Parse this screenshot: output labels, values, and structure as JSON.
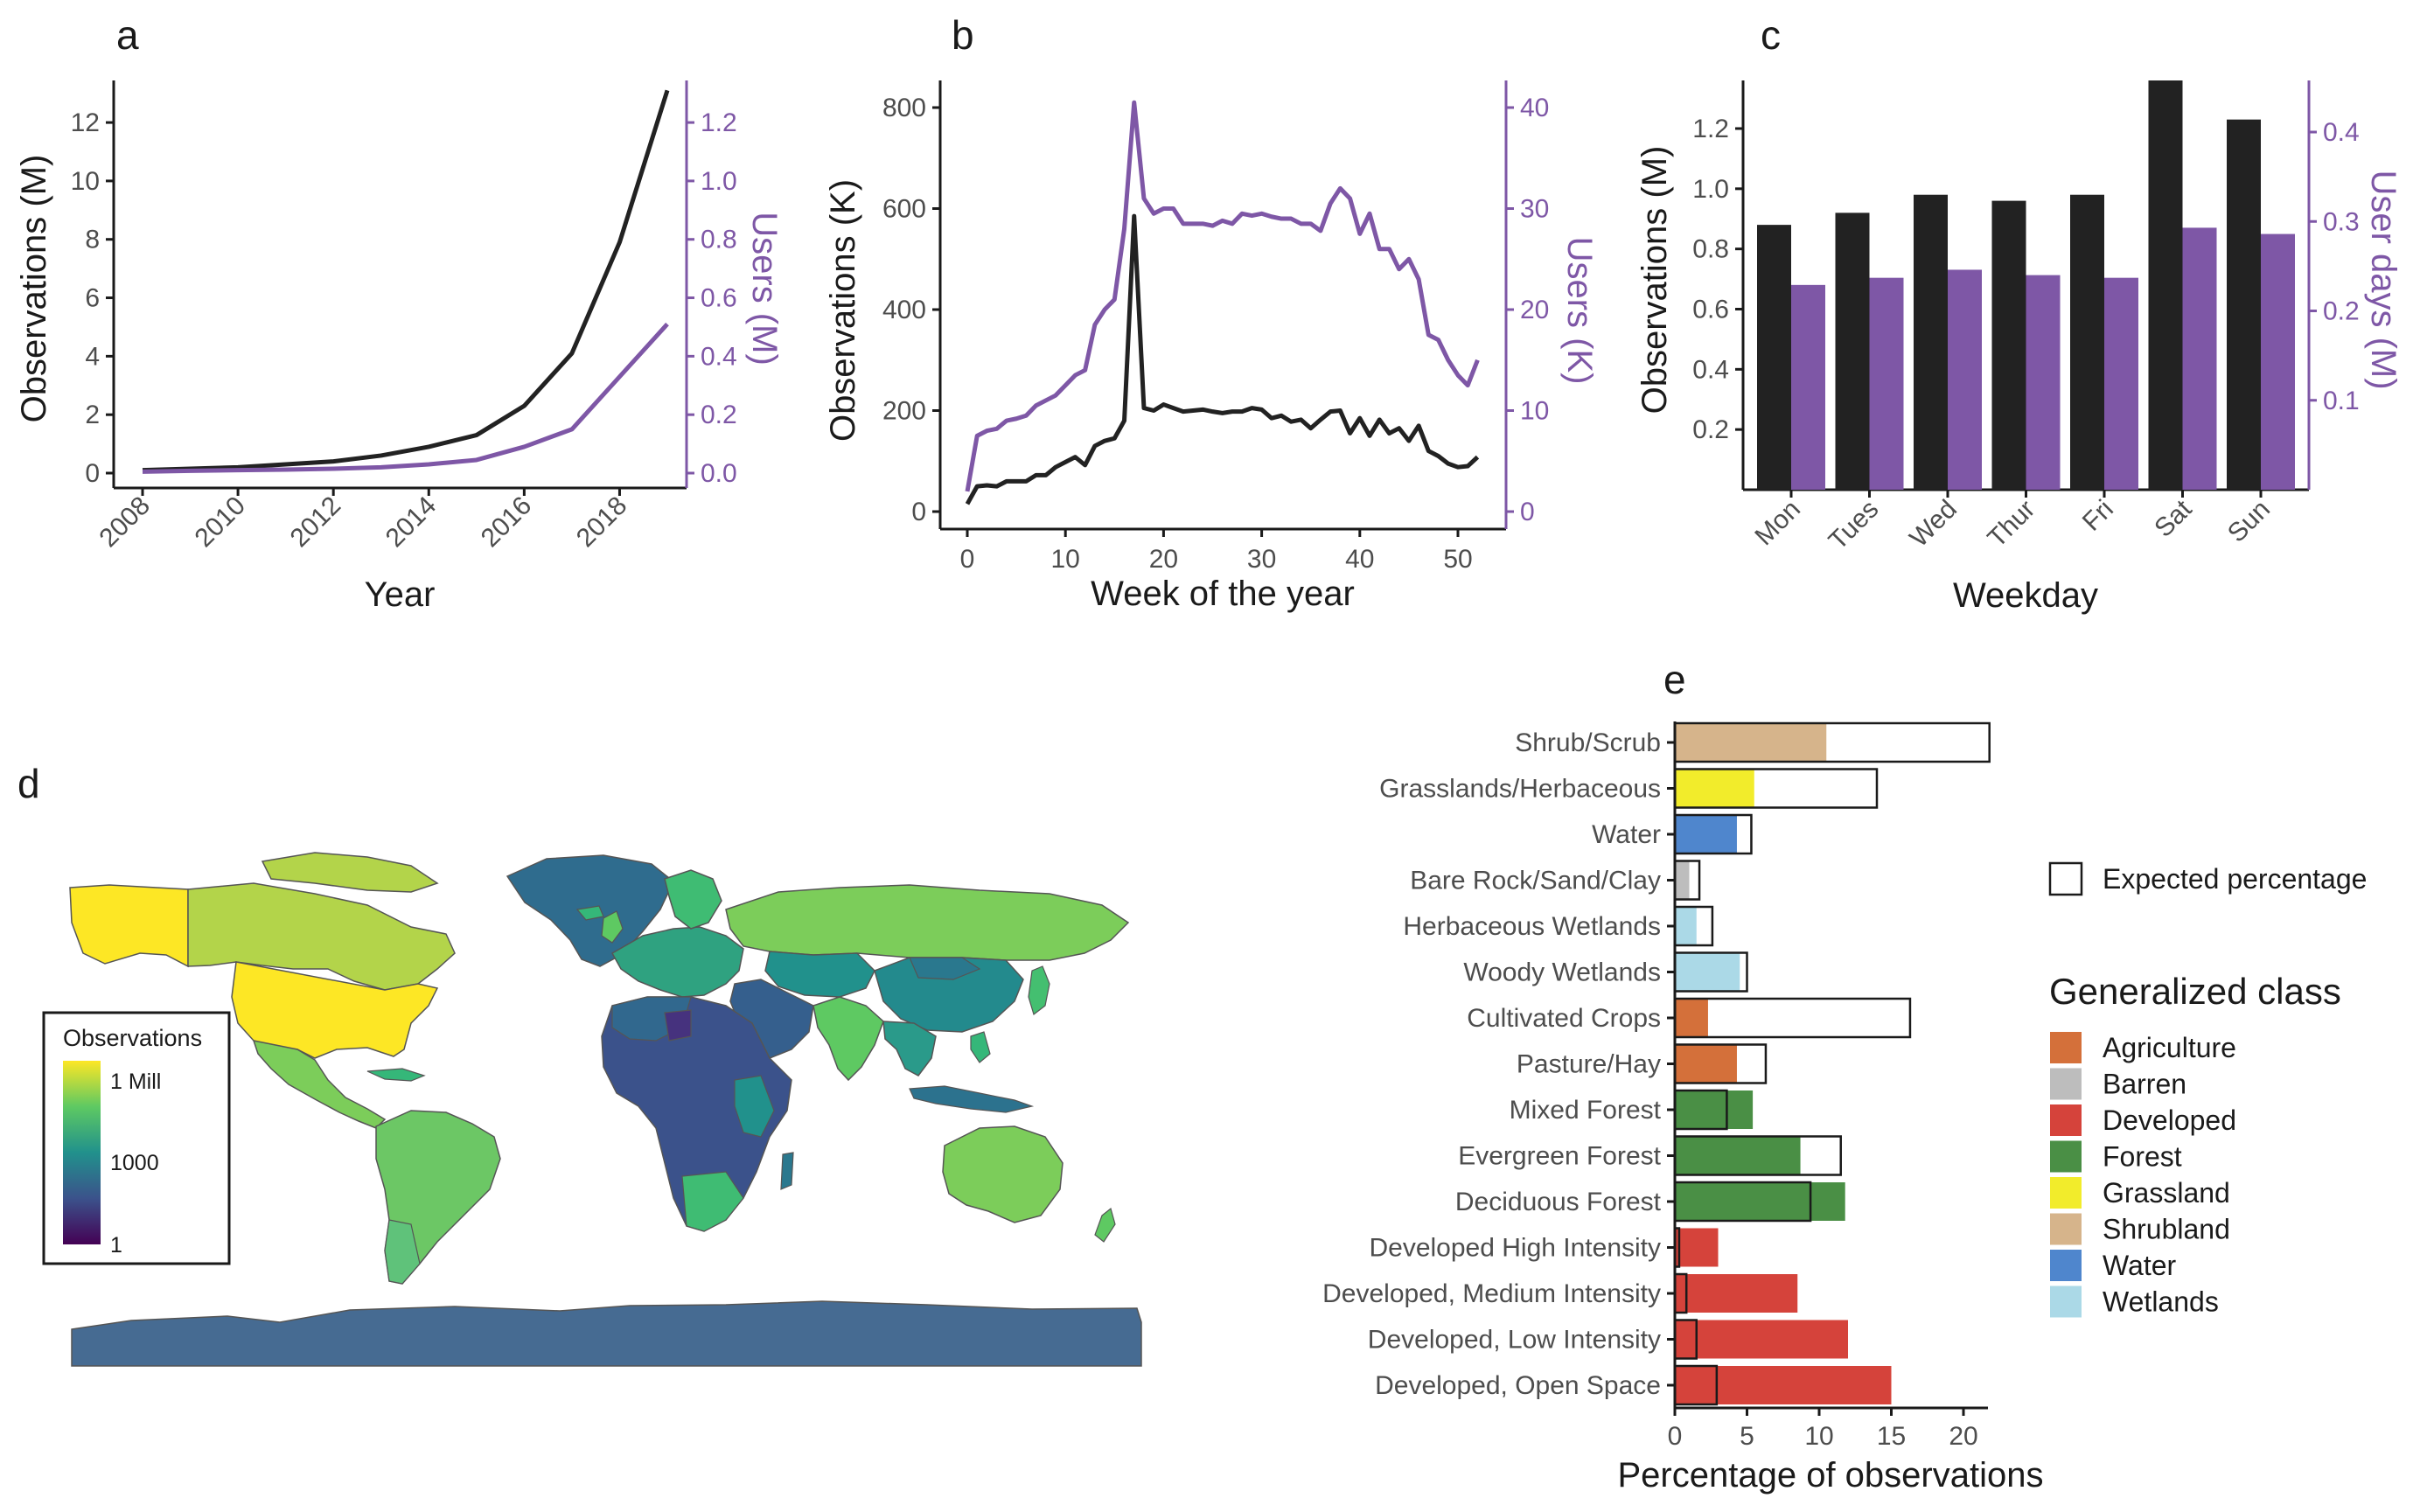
{
  "colors": {
    "black": "#222222",
    "purple": "#7e57a6",
    "land": "#3d6f8e",
    "ocean": "#ffffff"
  },
  "panels": {
    "a": "a",
    "b": "b",
    "c": "c",
    "d": "d",
    "e": "e"
  },
  "chart_data": [
    {
      "id": "a",
      "type": "line",
      "xlabel": "Year",
      "ylabel": "Observations (M)",
      "y2label": "Users (M)",
      "xlim": [
        2008,
        2019
      ],
      "ylim": [
        0,
        13.2
      ],
      "y2lim": [
        0,
        1.32
      ],
      "xticks": [
        2008,
        2010,
        2012,
        2014,
        2016,
        2018
      ],
      "yticks": [
        0,
        2,
        4,
        6,
        8,
        10,
        12
      ],
      "y2ticks": [
        0.0,
        0.2,
        0.4,
        0.6,
        0.8,
        1.0,
        1.2
      ],
      "y2ticklabels": [
        "0.0",
        "0.2",
        "0.4",
        "0.6",
        "0.8",
        "1.0",
        "1.2"
      ],
      "x": [
        2008,
        2009,
        2010,
        2011,
        2012,
        2013,
        2014,
        2015,
        2016,
        2017,
        2018,
        2019
      ],
      "series": [
        {
          "axis": "left",
          "color": "#222222",
          "values": [
            0.1,
            0.15,
            0.2,
            0.3,
            0.4,
            0.6,
            0.9,
            1.3,
            2.3,
            4.1,
            7.9,
            13.1
          ]
        },
        {
          "axis": "right",
          "color": "#7e57a6",
          "values": [
            0.005,
            0.008,
            0.01,
            0.012,
            0.015,
            0.02,
            0.03,
            0.045,
            0.09,
            0.15,
            0.33,
            0.51
          ]
        }
      ]
    },
    {
      "id": "b",
      "type": "line",
      "xlabel": "Week of the year",
      "ylabel": "Observations (K)",
      "y2label": "Users (K)",
      "xlim": [
        0,
        52
      ],
      "ylim": [
        0,
        830
      ],
      "y2lim": [
        0,
        41.5
      ],
      "xticks": [
        0,
        10,
        20,
        30,
        40,
        50
      ],
      "yticks": [
        0,
        200,
        400,
        600,
        800
      ],
      "y2ticks": [
        0,
        10,
        20,
        30,
        40
      ],
      "x": [
        0,
        1,
        2,
        3,
        4,
        5,
        6,
        7,
        8,
        9,
        10,
        11,
        12,
        13,
        14,
        15,
        16,
        17,
        18,
        19,
        20,
        21,
        22,
        23,
        24,
        25,
        26,
        27,
        28,
        29,
        30,
        31,
        32,
        33,
        34,
        35,
        36,
        37,
        38,
        39,
        40,
        41,
        42,
        43,
        44,
        45,
        46,
        47,
        48,
        49,
        50,
        51,
        52
      ],
      "series": [
        {
          "axis": "left",
          "color": "#222222",
          "values": [
            15,
            50,
            52,
            50,
            60,
            60,
            60,
            72,
            72,
            88,
            98,
            108,
            92,
            130,
            140,
            145,
            180,
            585,
            205,
            200,
            212,
            205,
            198,
            200,
            202,
            198,
            195,
            198,
            198,
            205,
            202,
            185,
            190,
            178,
            182,
            165,
            182,
            198,
            200,
            155,
            185,
            150,
            182,
            155,
            165,
            140,
            170,
            120,
            110,
            95,
            88,
            90,
            108
          ]
        },
        {
          "axis": "right",
          "color": "#7e57a6",
          "values": [
            2,
            7.5,
            8,
            8.2,
            9,
            9.2,
            9.5,
            10.5,
            11,
            11.5,
            12.5,
            13.5,
            14,
            18.5,
            20,
            21,
            28,
            40.5,
            31,
            29.5,
            30,
            30,
            28.5,
            28.5,
            28.5,
            28.3,
            28.8,
            28.5,
            29.5,
            29.3,
            29.5,
            29.2,
            29,
            29,
            28.5,
            28.5,
            27.8,
            30.5,
            32,
            31,
            27.5,
            29.5,
            26,
            26,
            24,
            25,
            23,
            17.5,
            17,
            15,
            13.5,
            12.5,
            15
          ]
        }
      ]
    },
    {
      "id": "c",
      "type": "bar",
      "xlabel": "Weekday",
      "ylabel": "Observations (M)",
      "y2label": "User days (M)",
      "ylim": [
        0,
        1.38
      ],
      "y2lim": [
        0,
        0.46
      ],
      "yticks": [
        0.2,
        0.4,
        0.6,
        0.8,
        1.0,
        1.2
      ],
      "y2ticks": [
        0.1,
        0.2,
        0.3,
        0.4
      ],
      "categories": [
        "Mon",
        "Tues",
        "Wed",
        "Thur",
        "Fri",
        "Sat",
        "Sun"
      ],
      "series": [
        {
          "axis": "left",
          "color": "#222222",
          "values": [
            0.88,
            0.92,
            0.98,
            0.96,
            0.98,
            1.38,
            1.23
          ]
        },
        {
          "axis": "right",
          "color": "#7e57a6",
          "values": [
            0.229,
            0.237,
            0.246,
            0.24,
            0.237,
            0.293,
            0.286
          ]
        }
      ]
    },
    {
      "id": "e",
      "type": "bar",
      "orientation": "horizontal",
      "xlabel": "Percentage of observations",
      "xlim": [
        0,
        22
      ],
      "xticks": [
        0,
        5,
        10,
        15,
        20
      ],
      "categories": [
        "Shrub/Scrub",
        "Grasslands/Herbaceous",
        "Water",
        "Bare Rock/Sand/Clay",
        "Herbaceous Wetlands",
        "Woody Wetlands",
        "Cultivated Crops",
        "Pasture/Hay",
        "Mixed Forest",
        "Evergreen Forest",
        "Deciduous Forest",
        "Developed High Intensity",
        "Developed, Medium Intensity",
        "Developed, Low Intensity",
        "Developed, Open Space"
      ],
      "values": [
        10.5,
        5.5,
        4.3,
        1.0,
        1.5,
        4.5,
        2.3,
        4.3,
        5.4,
        8.7,
        11.8,
        3.0,
        8.5,
        12.0,
        15.0
      ],
      "expected": [
        21.8,
        14.0,
        5.3,
        1.7,
        2.6,
        5.0,
        16.3,
        6.3,
        3.6,
        11.5,
        9.4,
        0.3,
        0.8,
        1.5,
        2.9
      ],
      "classes": [
        "Shrubland",
        "Grassland",
        "Water",
        "Barren",
        "Wetlands",
        "Wetlands",
        "Agriculture",
        "Agriculture",
        "Forest",
        "Forest",
        "Forest",
        "Developed",
        "Developed",
        "Developed",
        "Developed"
      ],
      "legend": {
        "expected_label": "Expected percentage",
        "title": "Generalized class",
        "items": [
          {
            "label": "Agriculture",
            "color": "#d4703a"
          },
          {
            "label": "Barren",
            "color": "#bdbdbd"
          },
          {
            "label": "Developed",
            "color": "#d5433b"
          },
          {
            "label": "Forest",
            "color": "#4a8f45"
          },
          {
            "label": "Grassland",
            "color": "#f2ec2b"
          },
          {
            "label": "Shrubland",
            "color": "#d6b48b"
          },
          {
            "label": "Water",
            "color": "#4f86cd"
          },
          {
            "label": "Wetlands",
            "color": "#abd9e7"
          }
        ]
      }
    },
    {
      "id": "d",
      "type": "map",
      "legend": {
        "title": "Observations",
        "labels": [
          "1 Mill",
          "1000",
          "1"
        ],
        "colors": [
          "#fde725",
          "#21918c",
          "#440154"
        ]
      }
    }
  ]
}
